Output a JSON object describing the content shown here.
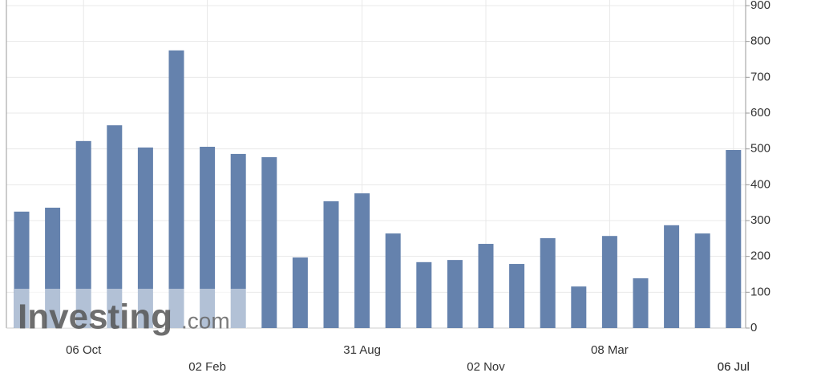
{
  "chart_data": {
    "type": "bar",
    "categories": [
      null,
      null,
      "06 Oct",
      null,
      null,
      null,
      "02 Feb",
      null,
      null,
      null,
      null,
      "31 Aug",
      null,
      null,
      null,
      "02 Nov",
      null,
      null,
      null,
      "08 Mar",
      null,
      null,
      null,
      "06 Jul"
    ],
    "values": [
      325,
      336,
      522,
      566,
      504,
      775,
      506,
      486,
      477,
      197,
      354,
      376,
      264,
      184,
      190,
      235,
      179,
      251,
      116,
      257,
      139,
      287,
      264,
      497
    ],
    "color": "#6582ad",
    "ylim": [
      0,
      900
    ],
    "yticks": [
      0,
      100,
      200,
      300,
      400,
      500,
      600,
      700,
      800,
      900
    ],
    "grid": true,
    "x_marker_label": "06 Jul",
    "watermark": {
      "brand": "Investing",
      "suffix": ".com"
    }
  }
}
